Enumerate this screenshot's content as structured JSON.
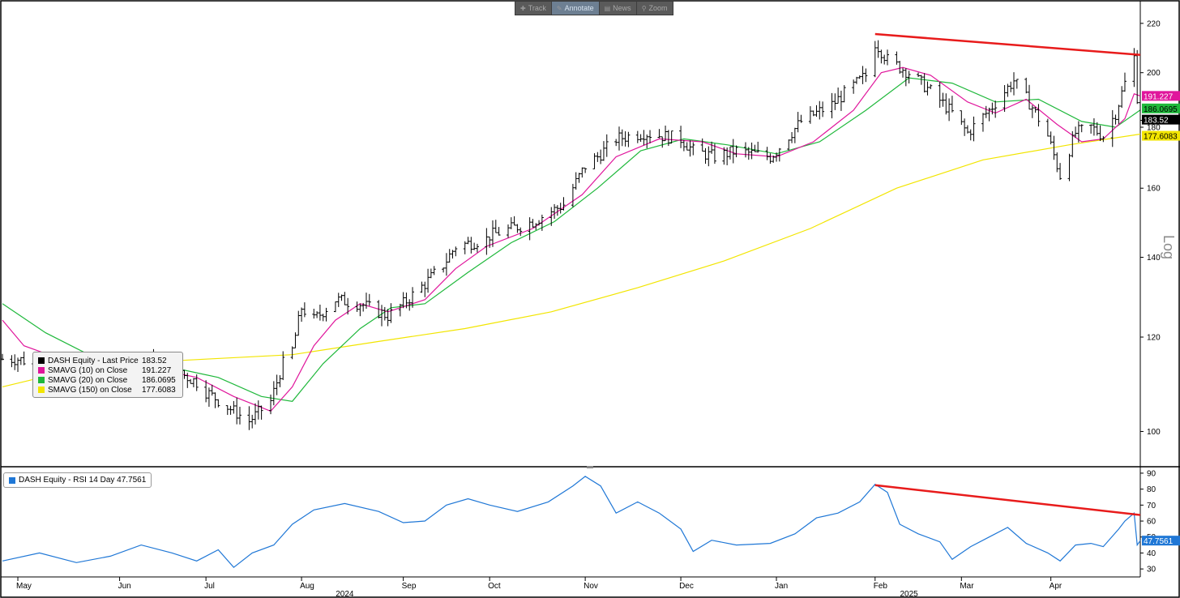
{
  "toolbar": {
    "items": [
      {
        "label": "Track",
        "icon": "crosshair-icon"
      },
      {
        "label": "Annotate",
        "icon": "pencil-icon"
      },
      {
        "label": "News",
        "icon": "news-icon"
      },
      {
        "label": "Zoom",
        "icon": "zoom-icon"
      }
    ],
    "active": "Annotate"
  },
  "price_legend": [
    {
      "label": "DASH Equity - Last Price",
      "value": "183.52",
      "color": "#000000"
    },
    {
      "label": "SMAVG (10)  on Close",
      "value": "191.227",
      "color": "#e0169c"
    },
    {
      "label": "SMAVG (20)  on Close",
      "value": "186.0695",
      "color": "#1fb83b"
    },
    {
      "label": "SMAVG (150)  on Close",
      "value": "177.6083",
      "color": "#f2e500"
    }
  ],
  "rsi_legend": {
    "label": "DASH Equity - RSI 14 Day 47.7561",
    "color": "#1f77d6"
  },
  "price_tags": [
    {
      "text": "191.227",
      "value": 191.227,
      "bg": "#e0169c",
      "fg": "#ffffff"
    },
    {
      "text": "186.0695",
      "value": 186.0695,
      "bg": "#1fb83b",
      "fg": "#000000"
    },
    {
      "text": "183.52",
      "value": 183.52,
      "bg": "#000000",
      "fg": "#ffffff"
    },
    {
      "text": "177.6083",
      "value": 177.6083,
      "bg": "#f2e500",
      "fg": "#000000"
    }
  ],
  "rsi_tag": {
    "text": "47.7561",
    "value": 47.7561,
    "bg": "#1f77d6",
    "fg": "#ffffff"
  },
  "chart_data": [
    {
      "type": "line",
      "scale": "log",
      "ylabel": "Log",
      "ylim": [
        94,
        228
      ],
      "yticks": [
        100,
        120,
        140,
        160,
        180,
        200,
        220
      ],
      "xlim": [
        "2024-04-26",
        "2025-04-30"
      ],
      "months": [
        {
          "label": "May",
          "date": "2024-05-01"
        },
        {
          "label": "Jun",
          "date": "2024-06-03"
        },
        {
          "label": "Jul",
          "date": "2024-07-01"
        },
        {
          "label": "Aug",
          "date": "2024-08-01"
        },
        {
          "label": "Sep",
          "date": "2024-09-03"
        },
        {
          "label": "Oct",
          "date": "2024-10-01"
        },
        {
          "label": "Nov",
          "date": "2024-11-01"
        },
        {
          "label": "Dec",
          "date": "2024-12-02"
        },
        {
          "label": "Jan",
          "date": "2025-01-02"
        },
        {
          "label": "Feb",
          "date": "2025-02-03"
        },
        {
          "label": "Mar",
          "date": "2025-03-03"
        },
        {
          "label": "Apr",
          "date": "2025-04-01"
        }
      ],
      "years": [
        {
          "label": "2024",
          "date": "2024-08-15"
        },
        {
          "label": "2025",
          "date": "2025-02-14"
        }
      ],
      "series": [
        {
          "name": "DASH Equity - Last Price",
          "kind": "ohlc-close",
          "color": "#000000",
          "points": [
            [
              "2024-04-26",
              115
            ],
            [
              "2024-05-01",
              115
            ],
            [
              "2024-05-15",
              113
            ],
            [
              "2024-05-31",
              110
            ],
            [
              "2024-06-03",
              111
            ],
            [
              "2024-06-14",
              115
            ],
            [
              "2024-06-28",
              110
            ],
            [
              "2024-07-01",
              108
            ],
            [
              "2024-07-10",
              104
            ],
            [
              "2024-07-15",
              102
            ],
            [
              "2024-07-22",
              106
            ],
            [
              "2024-07-26",
              114
            ],
            [
              "2024-07-29",
              117
            ],
            [
              "2024-08-01",
              127
            ],
            [
              "2024-08-05",
              124
            ],
            [
              "2024-08-12",
              129
            ],
            [
              "2024-08-20",
              128
            ],
            [
              "2024-08-29",
              125
            ],
            [
              "2024-09-03",
              128
            ],
            [
              "2024-09-10",
              133
            ],
            [
              "2024-09-16",
              138
            ],
            [
              "2024-09-20",
              143
            ],
            [
              "2024-09-30",
              145
            ],
            [
              "2024-10-01",
              146
            ],
            [
              "2024-10-15",
              150
            ],
            [
              "2024-10-25",
              155
            ],
            [
              "2024-11-01",
              167
            ],
            [
              "2024-11-05",
              170
            ],
            [
              "2024-11-11",
              176
            ],
            [
              "2024-11-20",
              178
            ],
            [
              "2024-12-02",
              176
            ],
            [
              "2024-12-06",
              172
            ],
            [
              "2024-12-13",
              170
            ],
            [
              "2024-12-20",
              172
            ],
            [
              "2024-12-31",
              170
            ],
            [
              "2025-01-02",
              172
            ],
            [
              "2025-01-10",
              182
            ],
            [
              "2025-01-20",
              188
            ],
            [
              "2025-01-31",
              199
            ],
            [
              "2025-02-03",
              212
            ],
            [
              "2025-02-07",
              205
            ],
            [
              "2025-02-14",
              200
            ],
            [
              "2025-02-21",
              193
            ],
            [
              "2025-02-28",
              185
            ],
            [
              "2025-03-05",
              178
            ],
            [
              "2025-03-12",
              186
            ],
            [
              "2025-03-20",
              197
            ],
            [
              "2025-03-26",
              187
            ],
            [
              "2025-03-31",
              177
            ],
            [
              "2025-04-04",
              164
            ],
            [
              "2025-04-09",
              178
            ],
            [
              "2025-04-14",
              180
            ],
            [
              "2025-04-18",
              177
            ],
            [
              "2025-04-22",
              185
            ],
            [
              "2025-04-25",
              196
            ],
            [
              "2025-04-28",
              206
            ],
            [
              "2025-04-29",
              191
            ],
            [
              "2025-04-30",
              183.52
            ]
          ]
        },
        {
          "name": "SMAVG (10)  on Close",
          "color": "#e0169c",
          "points": [
            [
              "2024-04-26",
              124
            ],
            [
              "2024-05-03",
              118
            ],
            [
              "2024-05-15",
              115
            ],
            [
              "2024-05-31",
              113
            ],
            [
              "2024-06-14",
              113
            ],
            [
              "2024-06-28",
              111
            ],
            [
              "2024-07-10",
              107
            ],
            [
              "2024-07-22",
              104
            ],
            [
              "2024-07-29",
              109
            ],
            [
              "2024-08-05",
              118
            ],
            [
              "2024-08-12",
              124
            ],
            [
              "2024-08-20",
              128
            ],
            [
              "2024-08-29",
              126
            ],
            [
              "2024-09-10",
              129
            ],
            [
              "2024-09-20",
              137
            ],
            [
              "2024-09-30",
              143
            ],
            [
              "2024-10-15",
              148
            ],
            [
              "2024-10-31",
              158
            ],
            [
              "2024-11-11",
              170
            ],
            [
              "2024-11-25",
              176
            ],
            [
              "2024-12-09",
              175
            ],
            [
              "2024-12-20",
              171
            ],
            [
              "2025-01-02",
              170
            ],
            [
              "2025-01-14",
              175
            ],
            [
              "2025-01-27",
              186
            ],
            [
              "2025-02-05",
              200
            ],
            [
              "2025-02-12",
              202
            ],
            [
              "2025-02-21",
              199
            ],
            [
              "2025-03-05",
              189
            ],
            [
              "2025-03-14",
              185
            ],
            [
              "2025-03-24",
              190
            ],
            [
              "2025-04-03",
              181
            ],
            [
              "2025-04-11",
              175
            ],
            [
              "2025-04-18",
              176
            ],
            [
              "2025-04-25",
              183
            ],
            [
              "2025-04-28",
              192
            ],
            [
              "2025-04-30",
              191.227
            ]
          ]
        },
        {
          "name": "SMAVG (20)  on Close",
          "color": "#1fb83b",
          "points": [
            [
              "2024-04-26",
              128
            ],
            [
              "2024-05-10",
              121
            ],
            [
              "2024-05-24",
              116
            ],
            [
              "2024-06-07",
              114
            ],
            [
              "2024-06-21",
              113
            ],
            [
              "2024-07-05",
              111
            ],
            [
              "2024-07-19",
              107
            ],
            [
              "2024-07-29",
              106
            ],
            [
              "2024-08-08",
              114
            ],
            [
              "2024-08-20",
              122
            ],
            [
              "2024-08-30",
              127
            ],
            [
              "2024-09-10",
              128
            ],
            [
              "2024-09-24",
              136
            ],
            [
              "2024-10-08",
              144
            ],
            [
              "2024-10-22",
              150
            ],
            [
              "2024-11-05",
              160
            ],
            [
              "2024-11-19",
              172
            ],
            [
              "2024-12-03",
              176
            ],
            [
              "2024-12-17",
              174
            ],
            [
              "2025-01-02",
              171
            ],
            [
              "2025-01-16",
              175
            ],
            [
              "2025-01-31",
              186
            ],
            [
              "2025-02-14",
              198
            ],
            [
              "2025-02-28",
              196
            ],
            [
              "2025-03-14",
              189
            ],
            [
              "2025-03-28",
              190
            ],
            [
              "2025-04-11",
              182
            ],
            [
              "2025-04-22",
              180
            ],
            [
              "2025-04-30",
              186.0695
            ]
          ]
        },
        {
          "name": "SMAVG (150)  on Close",
          "color": "#f2e500",
          "points": [
            [
              "2024-04-26",
              109
            ],
            [
              "2024-05-15",
              112
            ],
            [
              "2024-06-03",
              114
            ],
            [
              "2024-07-01",
              115
            ],
            [
              "2024-07-29",
              116
            ],
            [
              "2024-08-26",
              119
            ],
            [
              "2024-09-23",
              122
            ],
            [
              "2024-10-21",
              126
            ],
            [
              "2024-11-18",
              132
            ],
            [
              "2024-12-16",
              139
            ],
            [
              "2025-01-13",
              148
            ],
            [
              "2025-02-10",
              160
            ],
            [
              "2025-03-10",
              169
            ],
            [
              "2025-04-07",
              174
            ],
            [
              "2025-04-30",
              177.6083
            ]
          ]
        }
      ],
      "trendline": {
        "color": "#e81b1b",
        "from": [
          "2025-02-03",
          215.5
        ],
        "to": [
          "2025-04-30",
          207
        ]
      }
    },
    {
      "type": "line",
      "ylim": [
        25,
        92
      ],
      "yticks": [
        30,
        40,
        50,
        60,
        70,
        80,
        90
      ],
      "series": [
        {
          "name": "DASH Equity - RSI 14 Day",
          "color": "#1f77d6",
          "points": [
            [
              "2024-04-26",
              35
            ],
            [
              "2024-05-08",
              40
            ],
            [
              "2024-05-20",
              34
            ],
            [
              "2024-05-31",
              38
            ],
            [
              "2024-06-10",
              45
            ],
            [
              "2024-06-20",
              40
            ],
            [
              "2024-06-28",
              35
            ],
            [
              "2024-07-05",
              42
            ],
            [
              "2024-07-10",
              31
            ],
            [
              "2024-07-16",
              40
            ],
            [
              "2024-07-23",
              45
            ],
            [
              "2024-07-29",
              58
            ],
            [
              "2024-08-05",
              67
            ],
            [
              "2024-08-15",
              71
            ],
            [
              "2024-08-26",
              66
            ],
            [
              "2024-09-03",
              59
            ],
            [
              "2024-09-10",
              60
            ],
            [
              "2024-09-17",
              70
            ],
            [
              "2024-09-24",
              74
            ],
            [
              "2024-10-01",
              70
            ],
            [
              "2024-10-10",
              66
            ],
            [
              "2024-10-20",
              72
            ],
            [
              "2024-10-28",
              82
            ],
            [
              "2024-11-01",
              88
            ],
            [
              "2024-11-06",
              82
            ],
            [
              "2024-11-11",
              65
            ],
            [
              "2024-11-18",
              72
            ],
            [
              "2024-11-25",
              65
            ],
            [
              "2024-12-02",
              55
            ],
            [
              "2024-12-06",
              41
            ],
            [
              "2024-12-12",
              48
            ],
            [
              "2024-12-20",
              45
            ],
            [
              "2024-12-31",
              46
            ],
            [
              "2025-01-08",
              52
            ],
            [
              "2025-01-15",
              62
            ],
            [
              "2025-01-22",
              65
            ],
            [
              "2025-01-29",
              72
            ],
            [
              "2025-02-03",
              83
            ],
            [
              "2025-02-07",
              78
            ],
            [
              "2025-02-11",
              58
            ],
            [
              "2025-02-17",
              52
            ],
            [
              "2025-02-24",
              47
            ],
            [
              "2025-02-28",
              36
            ],
            [
              "2025-03-06",
              44
            ],
            [
              "2025-03-12",
              50
            ],
            [
              "2025-03-18",
              56
            ],
            [
              "2025-03-24",
              46
            ],
            [
              "2025-03-31",
              40
            ],
            [
              "2025-04-04",
              35
            ],
            [
              "2025-04-09",
              45
            ],
            [
              "2025-04-14",
              46
            ],
            [
              "2025-04-18",
              44
            ],
            [
              "2025-04-23",
              55
            ],
            [
              "2025-04-25",
              60
            ],
            [
              "2025-04-28",
              65
            ],
            [
              "2025-04-29",
              45
            ],
            [
              "2025-04-30",
              47.7561
            ]
          ]
        }
      ],
      "trendline": {
        "color": "#e81b1b",
        "from": [
          "2025-02-03",
          82.5
        ],
        "to": [
          "2025-04-30",
          63.8
        ]
      }
    }
  ]
}
